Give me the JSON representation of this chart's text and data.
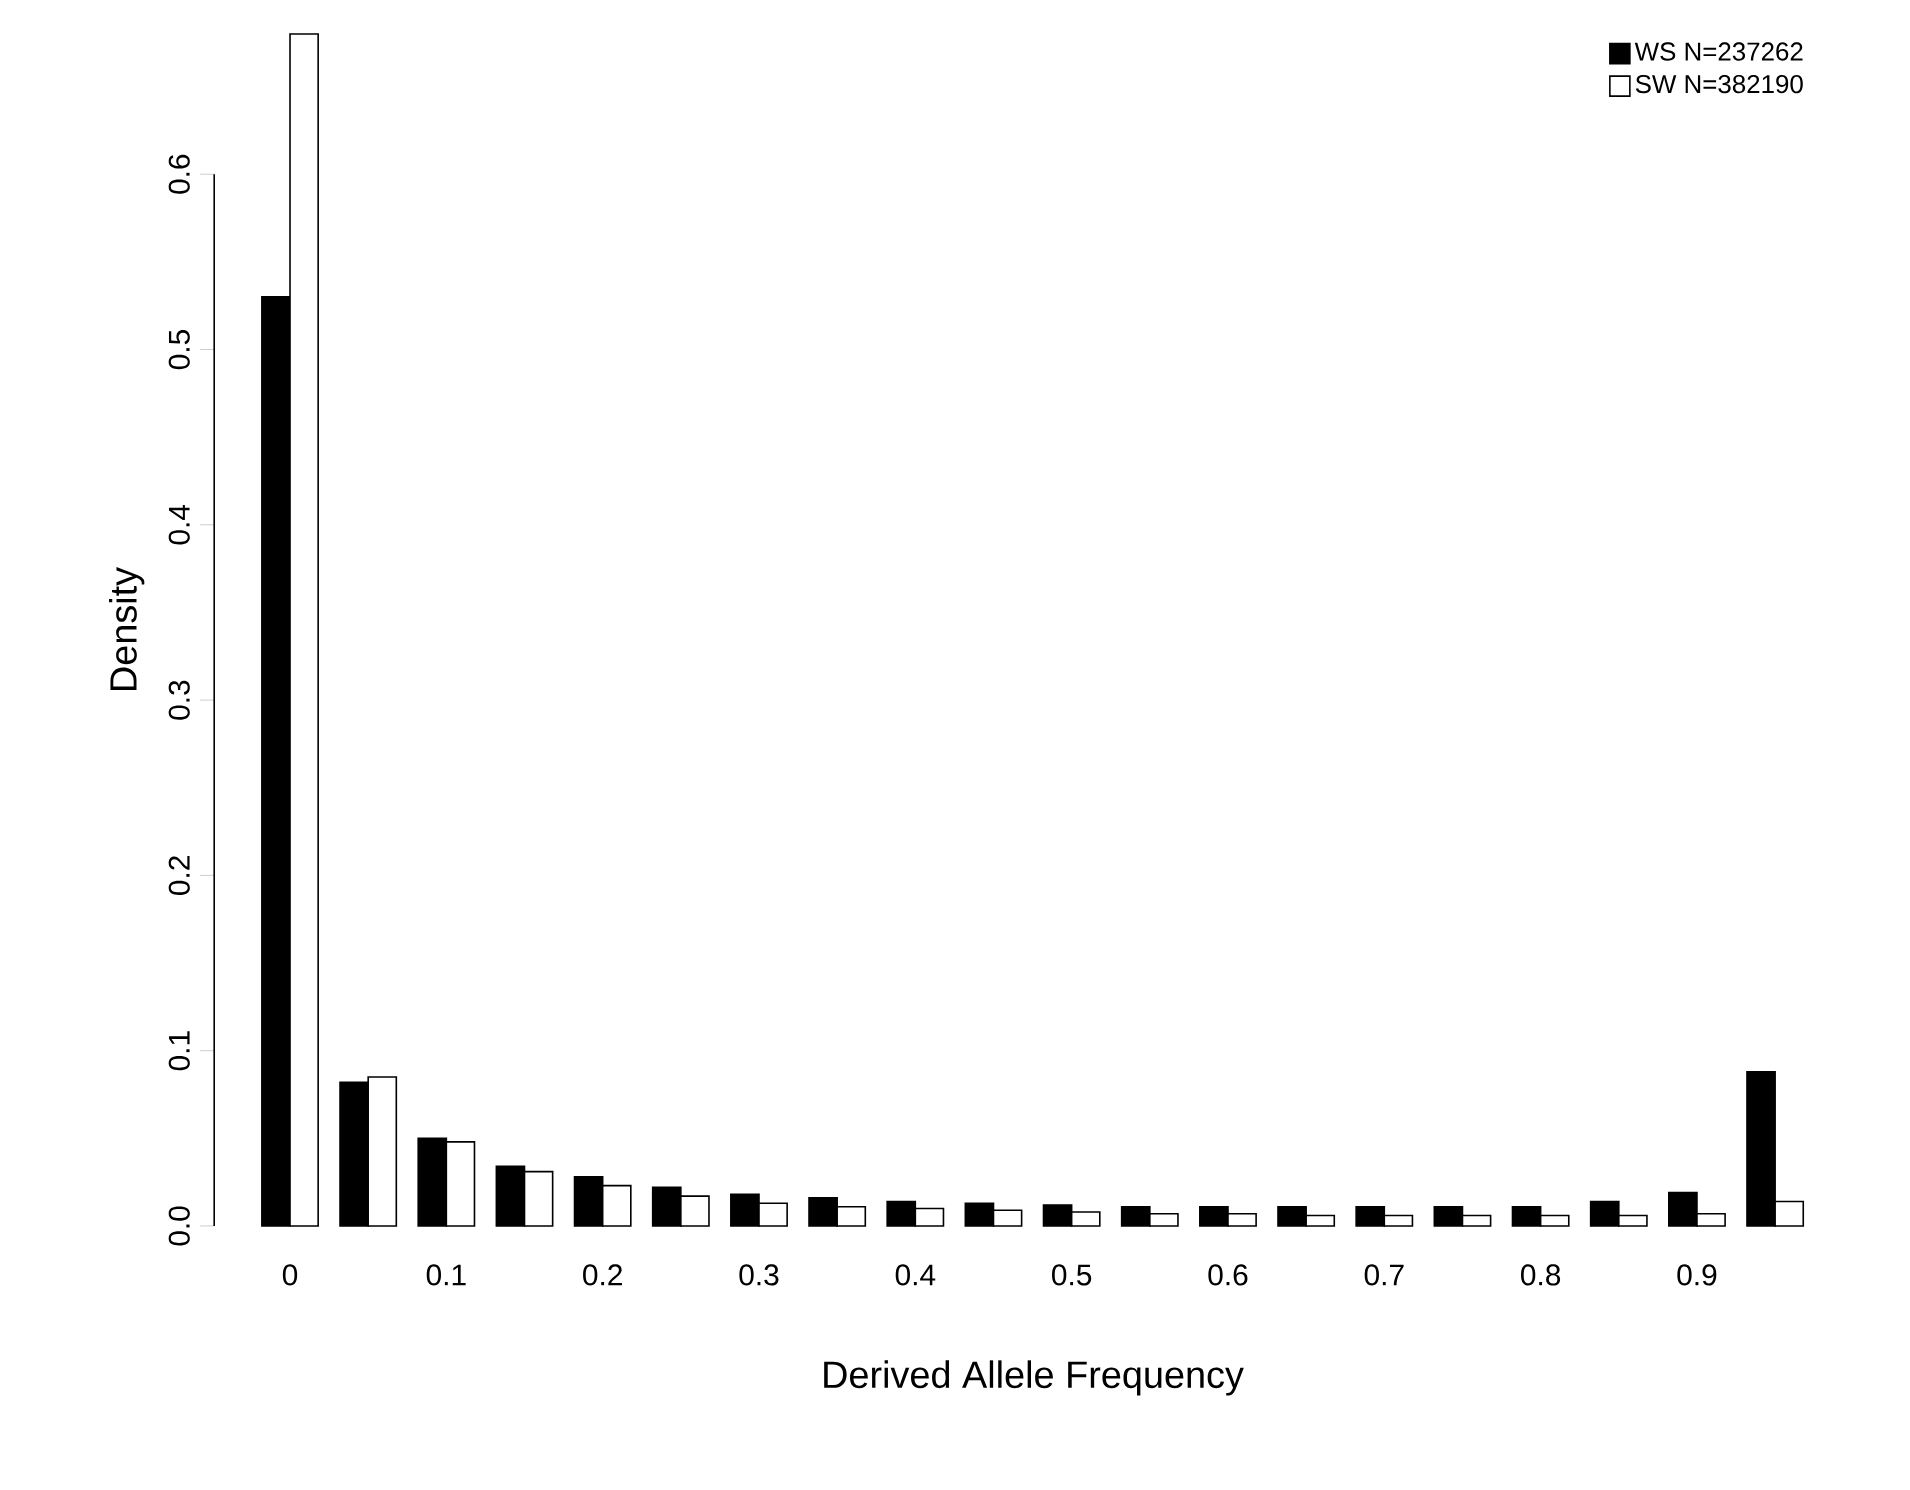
{
  "chart_data": {
    "type": "bar",
    "categories": [
      "0",
      null,
      "0.1",
      null,
      "0.2",
      null,
      "0.3",
      null,
      "0.4",
      null,
      "0.5",
      null,
      "0.6",
      null,
      "0.7",
      null,
      "0.8",
      null,
      "0.9",
      null
    ],
    "series": [
      {
        "name": "WS N=237262",
        "color": "#000000",
        "values": [
          0.53,
          0.082,
          0.05,
          0.034,
          0.028,
          0.022,
          0.018,
          0.016,
          0.014,
          0.013,
          0.012,
          0.011,
          0.011,
          0.011,
          0.011,
          0.011,
          0.011,
          0.014,
          0.019,
          0.088
        ]
      },
      {
        "name": "SW N=382190",
        "color": "#ffffff",
        "values": [
          0.68,
          0.085,
          0.048,
          0.031,
          0.023,
          0.017,
          0.013,
          0.011,
          0.01,
          0.009,
          0.008,
          0.007,
          0.007,
          0.006,
          0.006,
          0.006,
          0.006,
          0.006,
          0.007,
          0.014
        ]
      }
    ],
    "xlabel": "Derived Allele Frequency",
    "ylabel": "Density",
    "ylim": [
      0,
      0.68
    ],
    "yticks": [
      {
        "value": 0,
        "label": "0.0"
      },
      0.1,
      0.2,
      0.3,
      0.4,
      0.5,
      0.6
    ],
    "legend": "top right"
  }
}
